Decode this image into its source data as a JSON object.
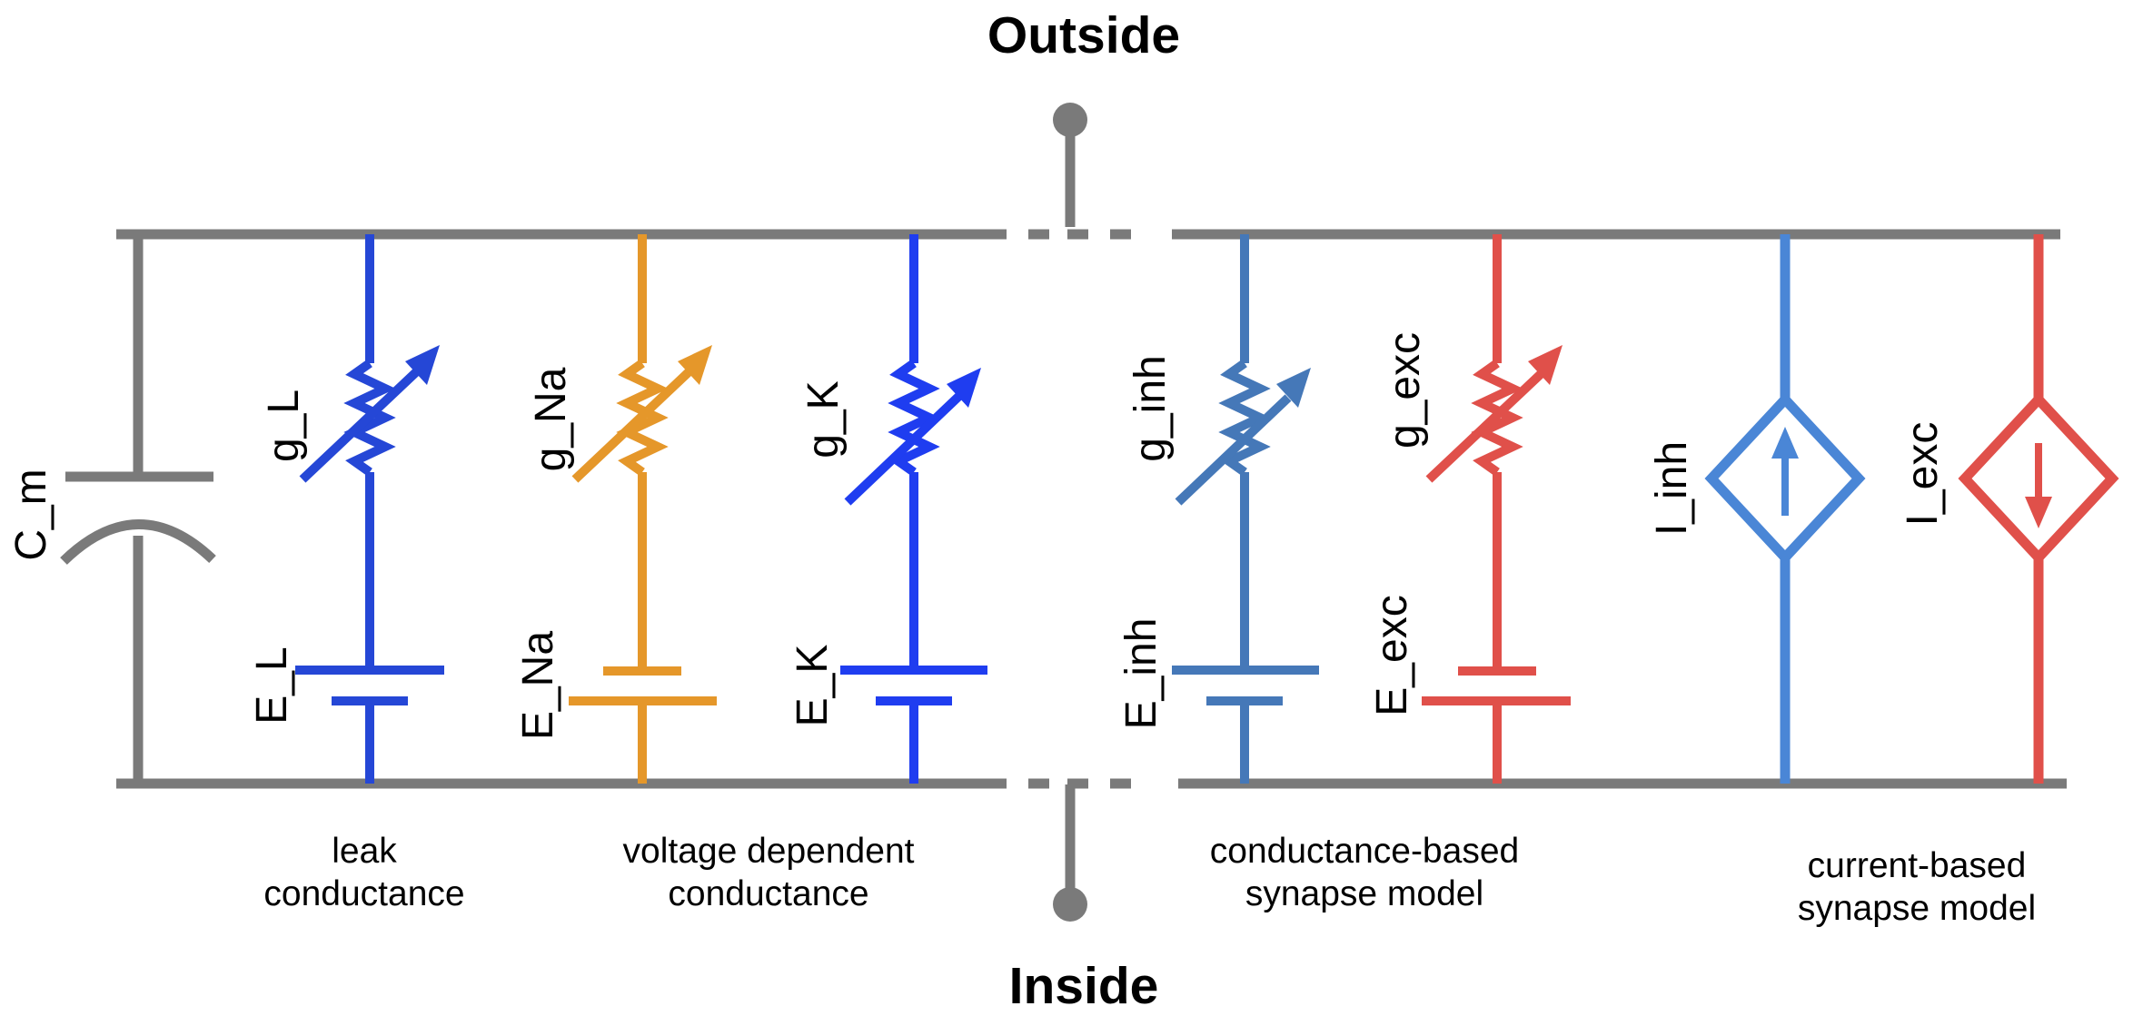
{
  "colors": {
    "wire": "#7a7a7a",
    "leak": "#2547d6",
    "sodium": "#e5972a",
    "potassium": "#1f3df0",
    "inhibitory": "#4578b8",
    "excitatory": "#e0504a",
    "current_inh": "#4a86d6"
  },
  "labels": {
    "outside": "Outside",
    "inside": "Inside",
    "capacitance": "C_m"
  },
  "branches": [
    {
      "conductance": "g_L",
      "reversal": "E_L"
    },
    {
      "conductance": "g_Na",
      "reversal": "E_Na"
    },
    {
      "conductance": "g_K",
      "reversal": "E_K"
    },
    {
      "conductance": "g_inh",
      "reversal": "E_inh"
    },
    {
      "conductance": "g_exc",
      "reversal": "E_exc"
    }
  ],
  "current_sources": [
    {
      "label": "I_inh",
      "direction": "up"
    },
    {
      "label": "I_exc",
      "direction": "down"
    }
  ],
  "groups": [
    {
      "lines": [
        "leak",
        "conductance"
      ]
    },
    {
      "lines": [
        "voltage dependent",
        "conductance"
      ]
    },
    {
      "lines": [
        "conductance-based",
        "synapse model"
      ]
    },
    {
      "lines": [
        "current-based",
        "synapse model"
      ]
    }
  ]
}
